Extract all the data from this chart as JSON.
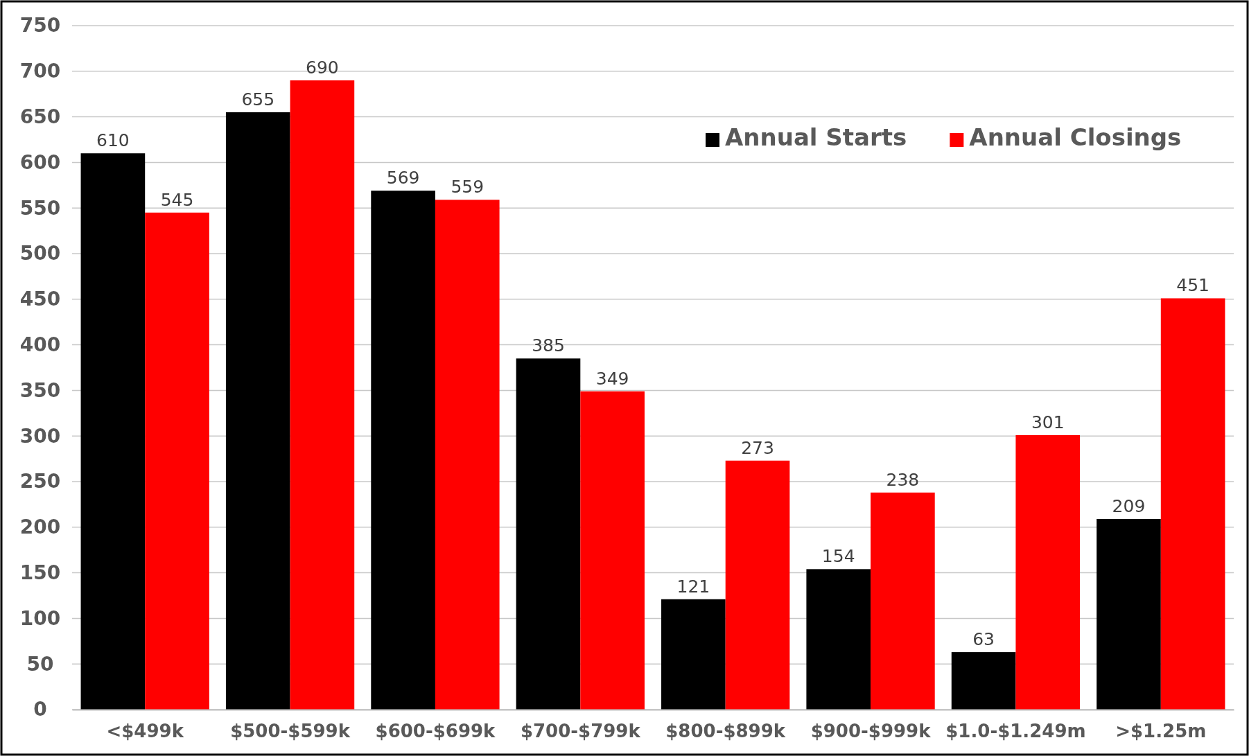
{
  "chart_data": {
    "type": "bar",
    "categories": [
      "<$499k",
      "$500-$599k",
      "$600-$699k",
      "$700-$799k",
      "$800-$899k",
      "$900-$999k",
      "$1.0-$1.249m",
      ">$1.25m"
    ],
    "series": [
      {
        "name": "Annual Starts",
        "color": "#000000",
        "values": [
          610,
          655,
          569,
          385,
          121,
          154,
          63,
          209
        ]
      },
      {
        "name": "Annual Closings",
        "color": "#ff0000",
        "values": [
          545,
          690,
          559,
          349,
          273,
          238,
          301,
          451
        ]
      }
    ],
    "ylim": [
      0,
      750
    ],
    "yticks": [
      0,
      50,
      100,
      150,
      200,
      250,
      300,
      350,
      400,
      450,
      500,
      550,
      600,
      650,
      700,
      750
    ],
    "grid": "y",
    "legend": "top right",
    "data_labels": true
  }
}
